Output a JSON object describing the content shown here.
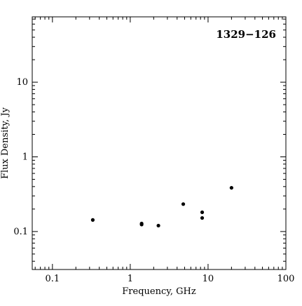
{
  "chart_data": {
    "type": "scatter",
    "title": "1329−126",
    "xlabel": "Frequency, GHz",
    "ylabel": "Flux Density, Jy",
    "x_scale": "log",
    "y_scale": "log",
    "xlim": [
      0.055,
      100
    ],
    "ylim": [
      0.031,
      75
    ],
    "x_ticks": [
      {
        "value": 0.1,
        "label": "0.1"
      },
      {
        "value": 1,
        "label": "1"
      },
      {
        "value": 10,
        "label": "10"
      },
      {
        "value": 100,
        "label": "100"
      }
    ],
    "y_ticks": [
      {
        "value": 0.1,
        "label": "0.1"
      },
      {
        "value": 1,
        "label": "1"
      },
      {
        "value": 10,
        "label": "10"
      }
    ],
    "grid": false,
    "legend": "none",
    "series": [
      {
        "color": "#000000",
        "points": [
          {
            "x": 0.33,
            "y": 0.143
          },
          {
            "x": 1.4,
            "y": 0.124
          },
          {
            "x": 1.4,
            "y": 0.128
          },
          {
            "x": 2.3,
            "y": 0.12
          },
          {
            "x": 4.8,
            "y": 0.233
          },
          {
            "x": 8.4,
            "y": 0.181
          },
          {
            "x": 8.4,
            "y": 0.152
          },
          {
            "x": 20,
            "y": 0.385
          }
        ]
      }
    ]
  }
}
